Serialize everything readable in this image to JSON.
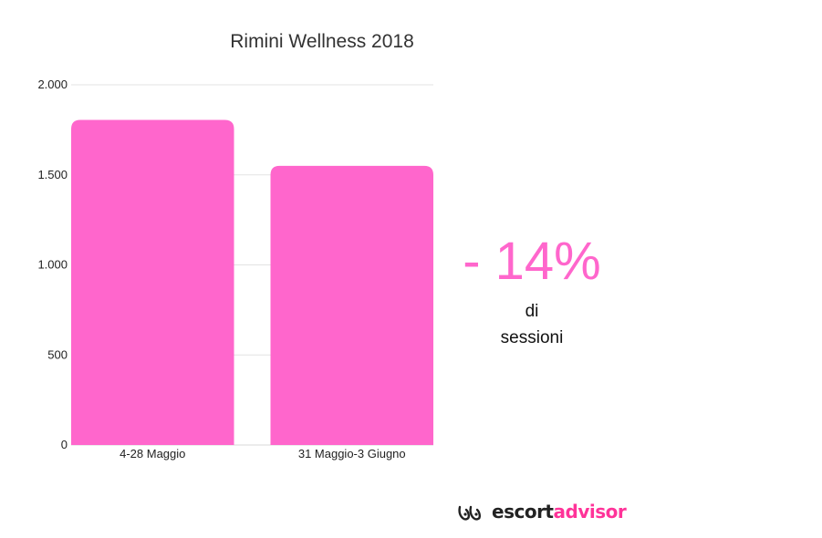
{
  "chart_data": {
    "type": "bar",
    "title": "Rimini Wellness 2018",
    "categories": [
      "4-28 Maggio",
      "31 Maggio-3 Giugno"
    ],
    "values": [
      1805,
      1550
    ],
    "ylim": [
      0,
      2000
    ],
    "yticks": [
      0,
      500,
      1000,
      1500,
      2000
    ],
    "ytick_labels": [
      "0",
      "500",
      "1.000",
      "1.500",
      "2.000"
    ],
    "grid": true,
    "bar_color": "#ff66cc",
    "xlabel": "",
    "ylabel": ""
  },
  "callout": {
    "value": "- 14%",
    "line1": "di",
    "line2": "sessioni",
    "color": "#ff66cc"
  },
  "brand": {
    "part1": "escort",
    "part2": "advisor",
    "accent_color": "#ff3399"
  }
}
